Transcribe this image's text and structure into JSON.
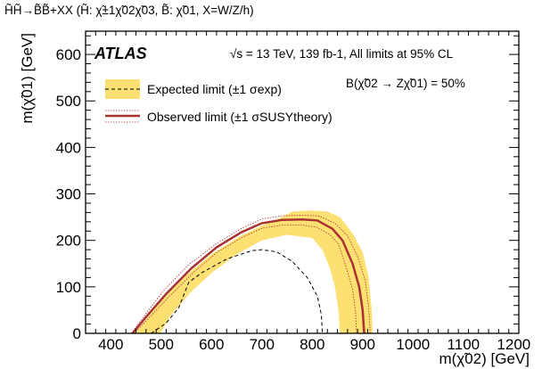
{
  "header": {
    "process": "H̃H̃→B̃B̃+XX (H̃: χ̃±1χ̃02χ̃03,  B̃: χ̃01, X=W/Z/h)"
  },
  "experiment_label": "ATLAS",
  "energy_label": "√s = 13 TeV, 139 fb-1, All limits at 95% CL",
  "branching_label": "B(χ̃02 → Zχ̃01) = 50%",
  "legend": {
    "expected": "Expected limit (±1 σexp)",
    "observed": "Observed limit (±1 σSUSYtheory)"
  },
  "colors": {
    "band": "#fde072",
    "observed": "#a83232",
    "frame": "#000000"
  },
  "chart_data": {
    "type": "area",
    "xlabel": "m(χ̃02) [GeV]",
    "ylabel": "m(χ̃01) [GeV]",
    "xlim": [
      350,
      1210
    ],
    "ylim": [
      0,
      650
    ],
    "x_ticks": [
      400,
      500,
      600,
      700,
      800,
      900,
      1000,
      1100,
      1200
    ],
    "y_ticks": [
      0,
      100,
      200,
      300,
      400,
      500,
      600
    ],
    "grid": false,
    "legend_position": "top-left",
    "series": [
      {
        "name": "Expected limit (±1 σexp)",
        "role": "band_outer",
        "points": [
          [
            446,
            0
          ],
          [
            470,
            30
          ],
          [
            500,
            70
          ],
          [
            550,
            125
          ],
          [
            600,
            170
          ],
          [
            650,
            205
          ],
          [
            700,
            232
          ],
          [
            740,
            250
          ],
          [
            760,
            262
          ],
          [
            800,
            264
          ],
          [
            830,
            262
          ],
          [
            855,
            250
          ],
          [
            880,
            215
          ],
          [
            900,
            175
          ],
          [
            912,
            120
          ],
          [
            918,
            50
          ],
          [
            920,
            0
          ]
        ]
      },
      {
        "name": "Expected limit (±1 σexp)",
        "role": "band_inner",
        "points": [
          [
            498,
            0
          ],
          [
            520,
            40
          ],
          [
            560,
            90
          ],
          [
            600,
            130
          ],
          [
            650,
            170
          ],
          [
            700,
            200
          ],
          [
            750,
            212
          ],
          [
            800,
            205
          ],
          [
            820,
            180
          ],
          [
            835,
            140
          ],
          [
            845,
            100
          ],
          [
            852,
            50
          ],
          [
            855,
            0
          ]
        ]
      },
      {
        "name": "Expected limit (±1 σexp)",
        "role": "expected",
        "points": [
          [
            480,
            0
          ],
          [
            510,
            22
          ],
          [
            535,
            55
          ],
          [
            555,
            110
          ],
          [
            580,
            130
          ],
          [
            630,
            160
          ],
          [
            680,
            178
          ],
          [
            700,
            180
          ],
          [
            730,
            175
          ],
          [
            760,
            155
          ],
          [
            790,
            120
          ],
          [
            810,
            80
          ],
          [
            818,
            40
          ],
          [
            820,
            0
          ]
        ]
      },
      {
        "name": "Observed limit (±1 σSUSYtheory)",
        "role": "observed",
        "points": [
          [
            443,
            0
          ],
          [
            470,
            35
          ],
          [
            510,
            85
          ],
          [
            560,
            140
          ],
          [
            610,
            185
          ],
          [
            660,
            218
          ],
          [
            700,
            237
          ],
          [
            740,
            244
          ],
          [
            780,
            245
          ],
          [
            810,
            243
          ],
          [
            840,
            225
          ],
          [
            860,
            200
          ],
          [
            880,
            150
          ],
          [
            893,
            100
          ],
          [
            900,
            50
          ],
          [
            903,
            0
          ]
        ]
      },
      {
        "name": "Observed limit (±1 σSUSYtheory)",
        "role": "observed_up",
        "points": [
          [
            441,
            0
          ],
          [
            468,
            40
          ],
          [
            505,
            92
          ],
          [
            555,
            148
          ],
          [
            610,
            193
          ],
          [
            660,
            226
          ],
          [
            700,
            246
          ],
          [
            740,
            253
          ],
          [
            780,
            254
          ],
          [
            812,
            253
          ],
          [
            845,
            237
          ],
          [
            870,
            210
          ],
          [
            890,
            165
          ],
          [
            905,
            115
          ],
          [
            912,
            55
          ],
          [
            915,
            0
          ]
        ]
      },
      {
        "name": "Observed limit (±1 σSUSYtheory)",
        "role": "observed_down",
        "points": [
          [
            446,
            0
          ],
          [
            473,
            30
          ],
          [
            515,
            78
          ],
          [
            565,
            132
          ],
          [
            612,
            175
          ],
          [
            662,
            207
          ],
          [
            700,
            226
          ],
          [
            740,
            233
          ],
          [
            780,
            233
          ],
          [
            810,
            228
          ],
          [
            835,
            212
          ],
          [
            852,
            192
          ],
          [
            868,
            140
          ],
          [
            880,
            95
          ],
          [
            886,
            45
          ],
          [
            888,
            0
          ]
        ]
      }
    ]
  }
}
